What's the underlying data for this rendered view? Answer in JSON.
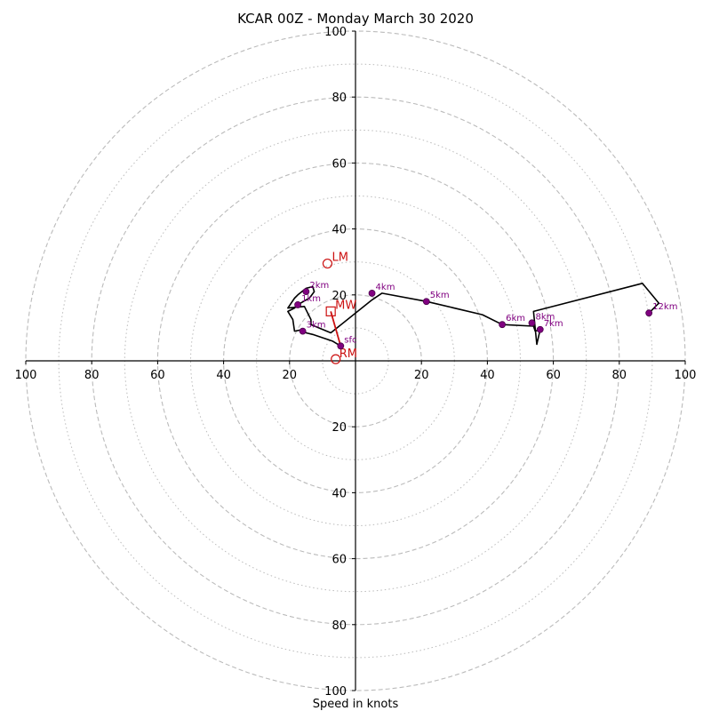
{
  "chart_data": {
    "type": "hodograph",
    "title": "KCAR 00Z - Monday March 30 2020",
    "xlabel": "Speed in knots",
    "axis_range": [
      -100,
      100
    ],
    "tick_labels": {
      "x": [
        "100",
        "80",
        "60",
        "40",
        "20",
        "20",
        "40",
        "60",
        "80",
        "100"
      ],
      "y": [
        "100",
        "80",
        "60",
        "40",
        "20",
        "20",
        "40",
        "60",
        "80",
        "100"
      ]
    },
    "rings": {
      "dashed": [
        20,
        40,
        60,
        80,
        100
      ],
      "dotted": [
        10,
        30,
        50,
        70,
        90
      ]
    },
    "colors": {
      "trace": "#000000",
      "height_marker": "#800080",
      "motion": "#cc1111",
      "grid": "#bbbbbb"
    },
    "trace": {
      "u": [
        -4.5,
        -7,
        -10,
        -13,
        -15,
        -16,
        -18.5,
        -19,
        -20.5,
        -18.5,
        -17.5,
        -15,
        -14,
        -12.5,
        -13,
        -15,
        -17.5,
        -18.5,
        -20.5,
        -15.5,
        -13.5,
        -13.5,
        -7.5,
        5,
        8,
        21.5,
        38.5,
        44.5,
        54,
        54.5,
        56,
        55,
        54,
        87,
        92,
        89
      ],
      "v": [
        4.5,
        6,
        7,
        8,
        8.5,
        9.5,
        9,
        12.5,
        15,
        16,
        17,
        18.5,
        19,
        21,
        22.5,
        22,
        20,
        19,
        16,
        16.5,
        12.5,
        11,
        8.5,
        18.5,
        20.5,
        18,
        14,
        11,
        10.5,
        9,
        9.5,
        5,
        15,
        23.5,
        17.5,
        14.5
      ]
    },
    "height_markers": [
      {
        "label": "sfc",
        "u": -4.5,
        "v": 4.5
      },
      {
        "label": "1km",
        "u": -17.5,
        "v": 17
      },
      {
        "label": "2km",
        "u": -15,
        "v": 21
      },
      {
        "label": "3km",
        "u": -16,
        "v": 9
      },
      {
        "label": "4km",
        "u": 5,
        "v": 20.5
      },
      {
        "label": "5km",
        "u": 21.5,
        "v": 18
      },
      {
        "label": "6km",
        "u": 44.5,
        "v": 11
      },
      {
        "label": "7km",
        "u": 56,
        "v": 9.5
      },
      {
        "label": "8km",
        "u": 53.5,
        "v": 11.5
      },
      {
        "label": "12km",
        "u": 89,
        "v": 14.5
      }
    ],
    "storm_motion": {
      "LM": {
        "label": "LM",
        "u": -8.5,
        "v": 29.5
      },
      "MW": {
        "label": "MW",
        "u": -7.5,
        "v": 15
      },
      "RM": {
        "label": "RM",
        "u": -6,
        "v": 0.5
      }
    },
    "shear_vector": {
      "from": {
        "u": -4.5,
        "v": 4.5
      },
      "to": {
        "u": -7.5,
        "v": 15
      }
    }
  }
}
